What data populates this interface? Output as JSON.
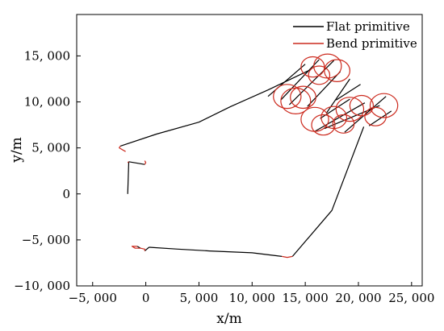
{
  "chart_data": {
    "type": "line",
    "title": "",
    "xlabel": "x/m",
    "ylabel": "y/m",
    "xlim": [
      -6500,
      26000
    ],
    "ylim": [
      -10000,
      19500
    ],
    "x_ticks": [
      -5000,
      0,
      5000,
      10000,
      15000,
      20000,
      25000
    ],
    "x_tick_labels": [
      "−5, 000",
      "0",
      "5, 000",
      "10, 000",
      "15, 000",
      "20, 000",
      "25, 000"
    ],
    "y_ticks": [
      -10000,
      -5000,
      0,
      5000,
      10000,
      15000
    ],
    "y_tick_labels": [
      "−10, 000",
      "−5, 000",
      "0",
      "5, 000",
      "10, 000",
      "15, 000"
    ],
    "grid": false,
    "legend_position": "top-right",
    "series": [
      {
        "name": "Flat primitive",
        "color": "#000000",
        "segments": [
          [
            [
              -1700,
              0
            ],
            [
              -1600,
              3500
            ]
          ],
          [
            [
              -1600,
              3500
            ],
            [
              -100,
              3200
            ]
          ],
          [
            [
              -2400,
              5200
            ],
            [
              1000,
              6500
            ],
            [
              5000,
              7800
            ],
            [
              8000,
              9500
            ],
            [
              11500,
              11300
            ],
            [
              15500,
              13500
            ]
          ],
          [
            [
              15000,
              14100
            ],
            [
              11500,
              10600
            ]
          ],
          [
            [
              16300,
              14600
            ],
            [
              12700,
              10200
            ]
          ],
          [
            [
              17700,
              14500
            ],
            [
              13500,
              9700
            ]
          ],
          [
            [
              18300,
              13300
            ],
            [
              15200,
              9500
            ]
          ],
          [
            [
              19200,
              12500
            ],
            [
              17000,
              8800
            ]
          ],
          [
            [
              20200,
              11900
            ],
            [
              17900,
              10200
            ]
          ],
          [
            [
              19200,
              10300
            ],
            [
              16400,
              8200
            ]
          ],
          [
            [
              20600,
              9900
            ],
            [
              15900,
              6800
            ]
          ],
          [
            [
              22000,
              9600
            ],
            [
              16800,
              7100
            ]
          ],
          [
            [
              22600,
              10600
            ],
            [
              18700,
              6700
            ]
          ],
          [
            [
              23100,
              9000
            ],
            [
              21000,
              7400
            ]
          ],
          [
            [
              20500,
              7300
            ],
            [
              17500,
              -1800
            ],
            [
              13800,
              -6800
            ]
          ],
          [
            [
              12800,
              -6800
            ],
            [
              10000,
              -6400
            ],
            [
              6000,
              -6200
            ],
            [
              3000,
              -6000
            ],
            [
              300,
              -5800
            ]
          ],
          [
            [
              -800,
              -5700
            ],
            [
              -500,
              -5900
            ]
          ],
          [
            [
              -100,
              -6200
            ],
            [
              300,
              -5800
            ]
          ]
        ]
      },
      {
        "name": "Bend primitive",
        "color": "#cc2a1e",
        "segments": [
          [
            [
              -1600,
              3500
            ],
            [
              -1700,
              3400
            ]
          ],
          [
            [
              -100,
              3200
            ],
            [
              0,
              3400
            ],
            [
              -100,
              3600
            ]
          ],
          [
            [
              -1900,
              4600
            ],
            [
              -2500,
              5000
            ],
            [
              -2400,
              5200
            ]
          ],
          [
            [
              12800,
              -6800
            ],
            [
              13300,
              -6900
            ],
            [
              13800,
              -6800
            ]
          ],
          [
            [
              -800,
              -5700
            ],
            [
              -1300,
              -5700
            ],
            [
              -1000,
              -5900
            ],
            [
              -500,
              -5900
            ]
          ],
          [
            [
              -500,
              -5900
            ],
            [
              -100,
              -6000
            ],
            [
              -100,
              -6200
            ]
          ]
        ],
        "loops": [
          {
            "cx": 13300,
            "cy": 10600,
            "rx": 1300,
            "ry": 1300
          },
          {
            "cx": 14100,
            "cy": 10100,
            "rx": 1400,
            "ry": 1400
          },
          {
            "cx": 14800,
            "cy": 10500,
            "rx": 1200,
            "ry": 1200
          },
          {
            "cx": 15700,
            "cy": 13800,
            "rx": 1100,
            "ry": 1100
          },
          {
            "cx": 17100,
            "cy": 13900,
            "rx": 1300,
            "ry": 1300
          },
          {
            "cx": 18000,
            "cy": 13400,
            "rx": 1200,
            "ry": 1200
          },
          {
            "cx": 16300,
            "cy": 12900,
            "rx": 1000,
            "ry": 1000
          },
          {
            "cx": 15900,
            "cy": 8100,
            "rx": 1300,
            "ry": 1300
          },
          {
            "cx": 16700,
            "cy": 7500,
            "rx": 1100,
            "ry": 1100
          },
          {
            "cx": 17700,
            "cy": 8300,
            "rx": 1200,
            "ry": 1200
          },
          {
            "cx": 18600,
            "cy": 7600,
            "rx": 1000,
            "ry": 1000
          },
          {
            "cx": 19200,
            "cy": 9200,
            "rx": 1300,
            "ry": 1300
          },
          {
            "cx": 20300,
            "cy": 9600,
            "rx": 1100,
            "ry": 1100
          },
          {
            "cx": 22400,
            "cy": 9600,
            "rx": 1300,
            "ry": 1300
          },
          {
            "cx": 21600,
            "cy": 8400,
            "rx": 1000,
            "ry": 1000
          }
        ]
      }
    ]
  }
}
